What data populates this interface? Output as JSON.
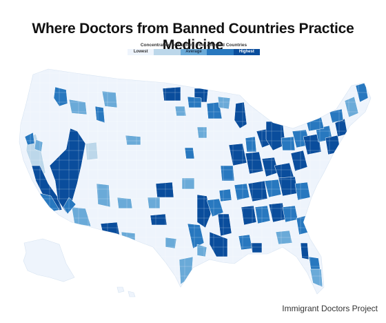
{
  "title": "Where Doctors from Banned Countries Practice Medicine",
  "legend": {
    "title": "Concentration of Doctors from Affected Countries",
    "levels": [
      {
        "label": "Lowest",
        "color": "#eef4fc",
        "text_color": "#333333"
      },
      {
        "label": "",
        "color": "#bcd7ea",
        "text_color": "#333333"
      },
      {
        "label": "Average",
        "color": "#6aaad8",
        "text_color": "#1b2f4a"
      },
      {
        "label": "",
        "color": "#2878bf",
        "text_color": "#ffffff"
      },
      {
        "label": "Highest",
        "color": "#0a4d9c",
        "text_color": "#ffffff"
      }
    ]
  },
  "map": {
    "region": "United States (contiguous, Alaska, Hawaii) by county",
    "base_color": "#eef4fc",
    "border_color": "#ffffff"
  },
  "source": "Immigrant Doctors Project"
}
